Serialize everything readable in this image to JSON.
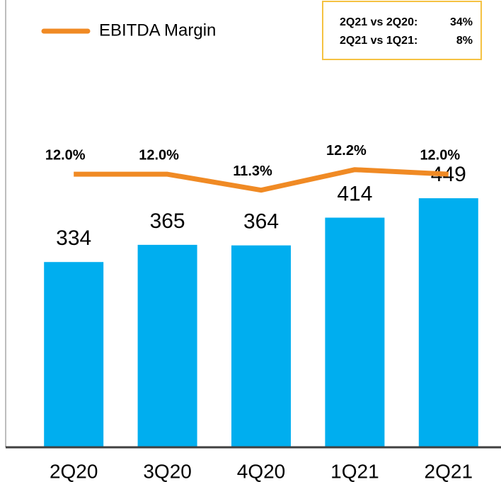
{
  "chart_data": {
    "type": "bar",
    "categories": [
      "2Q20",
      "3Q20",
      "4Q20",
      "1Q21",
      "2Q21"
    ],
    "series": [
      {
        "type": "bar",
        "color": "#00aeef",
        "values": [
          334,
          365,
          364,
          414,
          449
        ]
      },
      {
        "type": "line",
        "name": "EBITDA Margin",
        "color": "#f08a24",
        "axis": "y2",
        "values": [
          12.0,
          12.0,
          11.3,
          12.2,
          12.0
        ],
        "value_labels": [
          "12.0%",
          "12.0%",
          "11.3%",
          "12.2%",
          "12.0%"
        ]
      }
    ],
    "ylim": [
      0,
      800
    ],
    "y2lim": [
      0,
      19.5
    ],
    "annotations": [
      {
        "label": "2Q21 vs 2Q20:",
        "value": "34%"
      },
      {
        "label": "2Q21 vs 1Q21:",
        "value": "8%"
      }
    ]
  }
}
